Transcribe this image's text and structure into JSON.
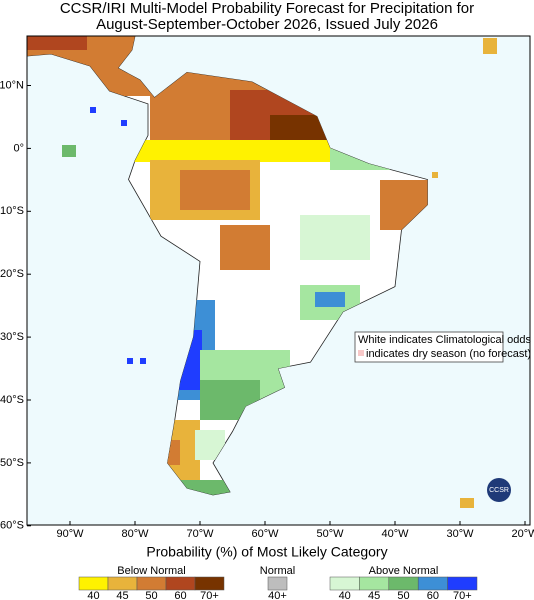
{
  "title": [
    "CCSR/IRI Multi-Model Probability Forecast for Precipitation for",
    "August-September-October 2026, Issued July 2026"
  ],
  "map": {
    "lat_ticks": [
      "10°N",
      "0°",
      "10°S",
      "20°S",
      "30°S",
      "40°S",
      "50°S",
      "60°S"
    ],
    "lon_ticks": [
      "90°W",
      "80°W",
      "70°W",
      "60°W",
      "50°W",
      "40°W",
      "30°W",
      "20°W"
    ],
    "annotations": [
      "White indicates Climatological odds",
      "indicates dry season (no forecast)"
    ],
    "logo_text": "CCSR"
  },
  "legend": {
    "title": "Probability (%) of Most Likely Category",
    "groups": [
      {
        "name": "Below Normal",
        "colors": [
          "#fff200",
          "#e8b33b",
          "#d27c33",
          "#b0461f",
          "#773300"
        ],
        "labels": [
          "40",
          "45",
          "50",
          "60",
          "70+"
        ]
      },
      {
        "name": "Normal",
        "colors": [
          "#bdbdbd"
        ],
        "labels": [
          "40+"
        ]
      },
      {
        "name": "Above Normal",
        "colors": [
          "#d7f6d4",
          "#a5e6a0",
          "#6cb96b",
          "#3d8fd6",
          "#1f3dff"
        ],
        "labels": [
          "40",
          "45",
          "50",
          "60",
          "70+"
        ]
      }
    ]
  }
}
